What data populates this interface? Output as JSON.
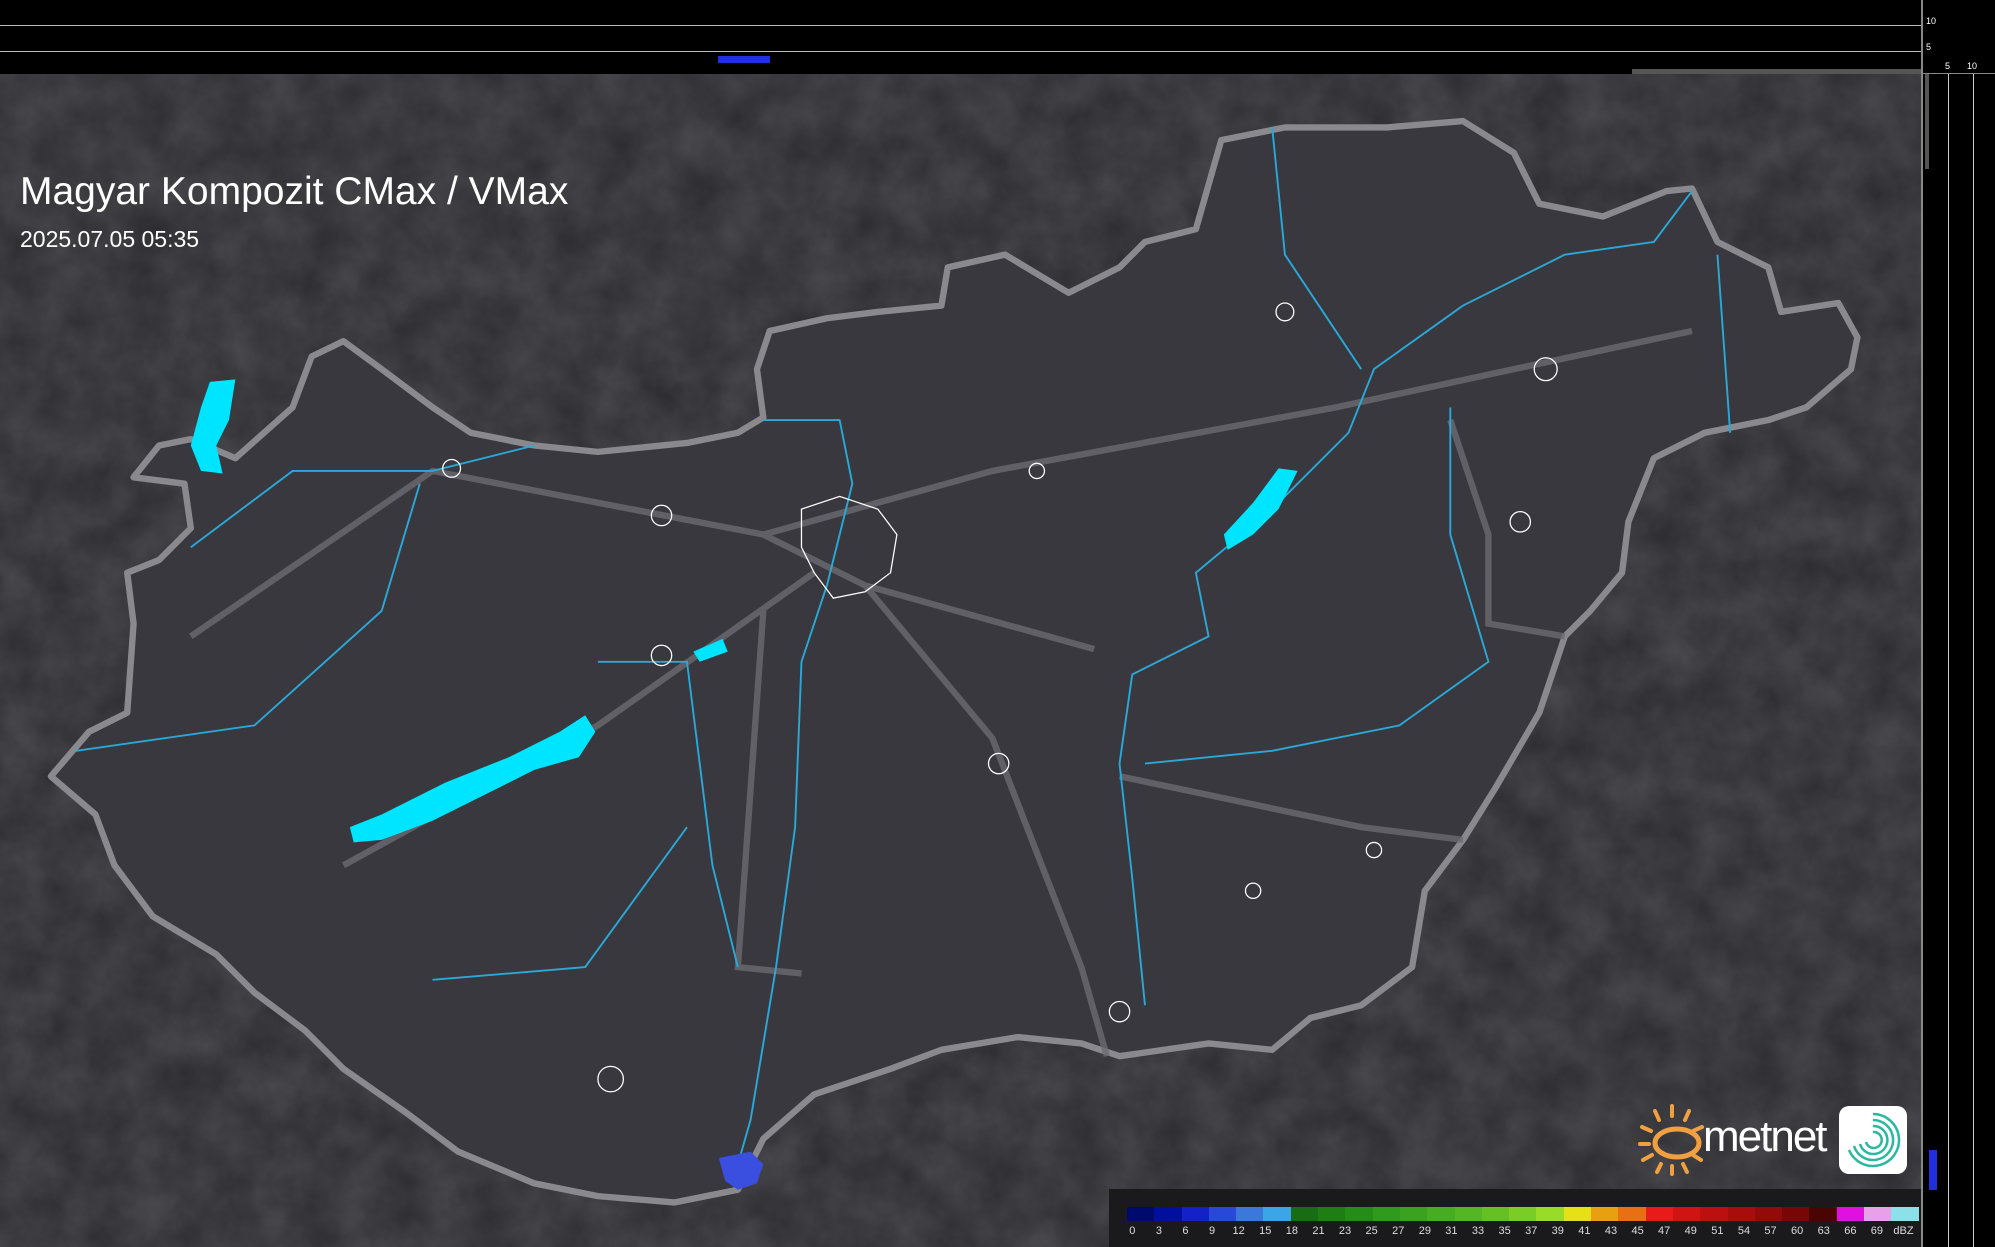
{
  "title": "Magyar Kompozit CMax / VMax",
  "timestamp": "2025.07.05 05:35",
  "side_profile_ticks": {
    "vertical": [
      "10",
      "5"
    ],
    "horizontal": [
      "5",
      "10"
    ]
  },
  "legend": {
    "unit": "dBZ",
    "labels": [
      "0",
      "3",
      "6",
      "9",
      "12",
      "15",
      "18",
      "21",
      "23",
      "25",
      "27",
      "29",
      "31",
      "33",
      "35",
      "37",
      "39",
      "41",
      "43",
      "45",
      "47",
      "49",
      "51",
      "54",
      "57",
      "60",
      "63",
      "66",
      "69"
    ],
    "colors": [
      "#000a6e",
      "#000f9e",
      "#1420c8",
      "#2a48d8",
      "#3a78dc",
      "#3aa6e8",
      "#186c14",
      "#1e7e14",
      "#268c18",
      "#309a1c",
      "#3aa21e",
      "#46ac20",
      "#54b622",
      "#66c024",
      "#7ccc26",
      "#98dc28",
      "#e6e016",
      "#e8a010",
      "#e87012",
      "#e81a1a",
      "#d01414",
      "#bc1010",
      "#a80c0c",
      "#920a0a",
      "#780606",
      "#4a0404",
      "#e010e0",
      "#e8a0e8",
      "#8ce0e8"
    ]
  },
  "logo": {
    "brand": "metnet",
    "sun_color": "#f0a040",
    "app_color": "#2ab8a0"
  },
  "colors": {
    "background": "#2b2b2f",
    "country": "#38383e",
    "border": "#8a8a8e",
    "water": "#00e5ff",
    "rivers": "#2aa8d8",
    "radar_echo": "#3a4ee0"
  }
}
